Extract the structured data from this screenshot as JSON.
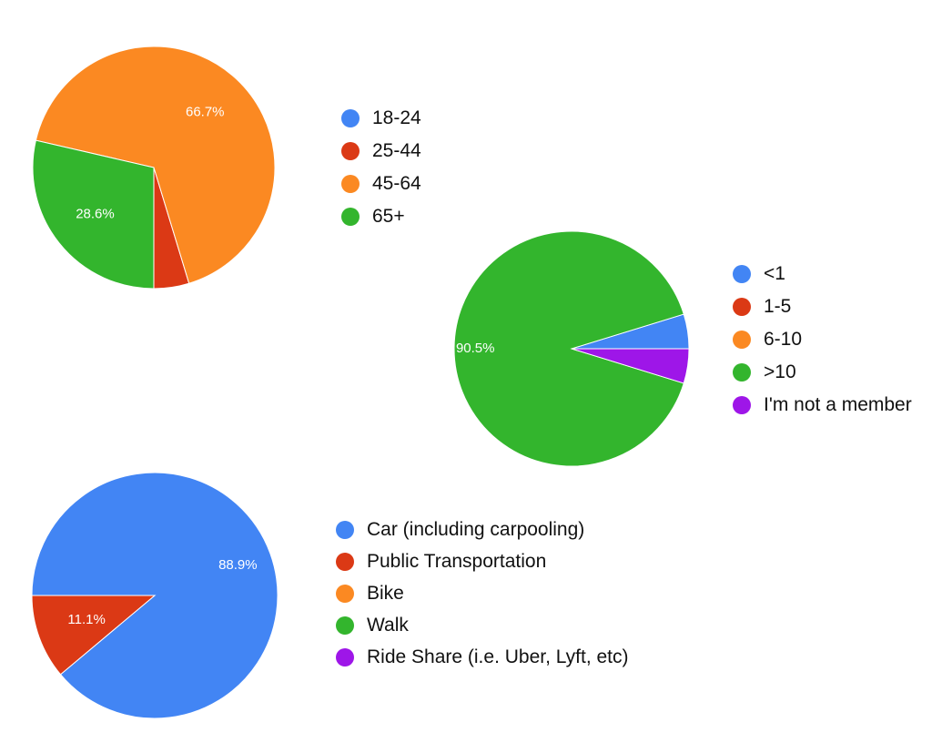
{
  "chart_data": [
    {
      "type": "pie",
      "categories": [
        "18-24",
        "25-44",
        "45-64",
        "65+"
      ],
      "values": [
        0,
        4.7,
        66.7,
        28.6
      ],
      "value_labels": [
        "",
        "",
        "66.7%",
        "28.6%"
      ],
      "colors": [
        "#4285f4",
        "#db3915",
        "#fb8922",
        "#33b52d"
      ],
      "legend_position": "right"
    },
    {
      "type": "pie",
      "categories": [
        "<1",
        "1-5",
        "6-10",
        ">10",
        "I'm not a member"
      ],
      "values": [
        4.75,
        0,
        0,
        90.5,
        4.75
      ],
      "value_labels": [
        "",
        "",
        "",
        "90.5%",
        ""
      ],
      "colors": [
        "#4285f4",
        "#db3915",
        "#fb8922",
        "#33b52d",
        "#9e16e8"
      ],
      "legend_position": "right"
    },
    {
      "type": "pie",
      "categories": [
        "Car (including carpooling)",
        "Public Transportation",
        "Bike",
        "Walk",
        "Ride Share (i.e. Uber, Lyft, etc)"
      ],
      "values": [
        88.9,
        11.1,
        0,
        0,
        0
      ],
      "value_labels": [
        "88.9%",
        "11.1%",
        "",
        "",
        ""
      ],
      "colors": [
        "#4285f4",
        "#db3915",
        "#fb8922",
        "#33b52d",
        "#9e16e8"
      ],
      "legend_position": "right"
    }
  ]
}
